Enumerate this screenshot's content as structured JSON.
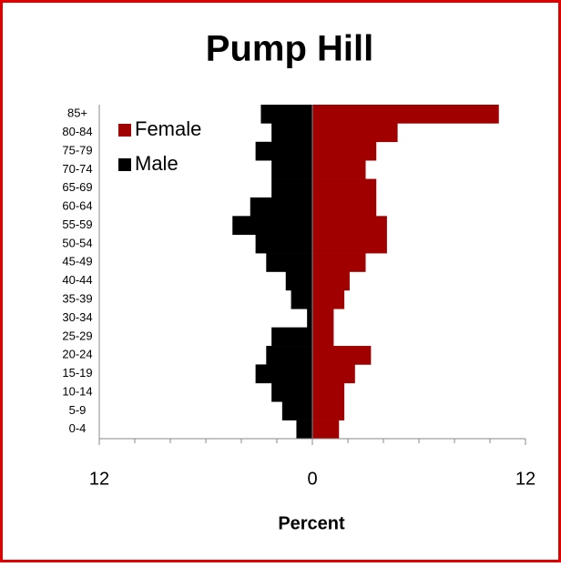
{
  "chart_data": {
    "type": "pyramid",
    "title": "Pump Hill",
    "xlabel": "Percent",
    "categories": [
      "0-4",
      "5-9",
      "10-14",
      "15-19",
      "20-24",
      "25-29",
      "30-34",
      "35-39",
      "40-44",
      "45-49",
      "50-54",
      "55-59",
      "60-64",
      "65-69",
      "70-74",
      "75-79",
      "80-84",
      "85+"
    ],
    "series": [
      {
        "name": "Female",
        "color": "#a00000",
        "values": [
          1.5,
          1.8,
          1.8,
          2.4,
          3.3,
          1.2,
          1.2,
          1.8,
          2.1,
          3.0,
          4.2,
          4.2,
          3.6,
          3.6,
          3.0,
          3.6,
          4.8,
          10.5
        ]
      },
      {
        "name": "Male",
        "color": "#000000",
        "values": [
          -0.9,
          -1.7,
          -2.3,
          -3.2,
          -2.6,
          -2.3,
          -0.3,
          -1.2,
          -1.5,
          -2.6,
          -3.2,
          -4.5,
          -3.5,
          -2.3,
          -2.3,
          -3.2,
          -2.3,
          -2.9
        ]
      }
    ],
    "xlim": [
      -12,
      12
    ],
    "xticks": [
      {
        "value": -12,
        "label": "12"
      },
      0,
      12
    ],
    "xminorticks": [
      -10,
      -8,
      -6,
      -4,
      -2,
      2,
      4,
      6,
      8,
      10
    ],
    "legend": "top-left"
  }
}
